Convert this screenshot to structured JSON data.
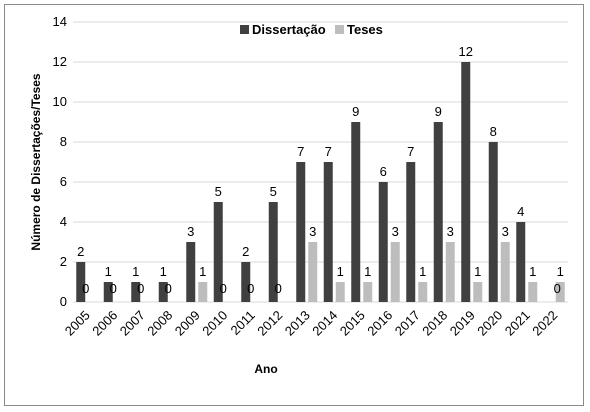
{
  "chart_data": {
    "type": "bar",
    "categories": [
      "2005",
      "2006",
      "2007",
      "2008",
      "2009",
      "2010",
      "2011",
      "2012",
      "2013",
      "2014",
      "2015",
      "2016",
      "2017",
      "2018",
      "2019",
      "2020",
      "2021",
      "2022"
    ],
    "series": [
      {
        "name": "Dissertação",
        "values": [
          2,
          1,
          1,
          1,
          3,
          5,
          2,
          5,
          7,
          7,
          9,
          6,
          7,
          9,
          12,
          8,
          4,
          0
        ],
        "color": "#404040"
      },
      {
        "name": "Teses",
        "values": [
          0,
          0,
          0,
          0,
          1,
          0,
          0,
          0,
          3,
          1,
          1,
          3,
          1,
          3,
          1,
          3,
          1,
          1
        ],
        "color": "#bdbdbd"
      }
    ],
    "xlabel": "Ano",
    "ylabel": "Número de Dissertações/Teses",
    "ylim": [
      0,
      14
    ],
    "yticks": [
      0,
      2,
      4,
      6,
      8,
      10,
      12,
      14
    ],
    "legend_position": "top-center",
    "grid": true,
    "data_labels": true
  }
}
